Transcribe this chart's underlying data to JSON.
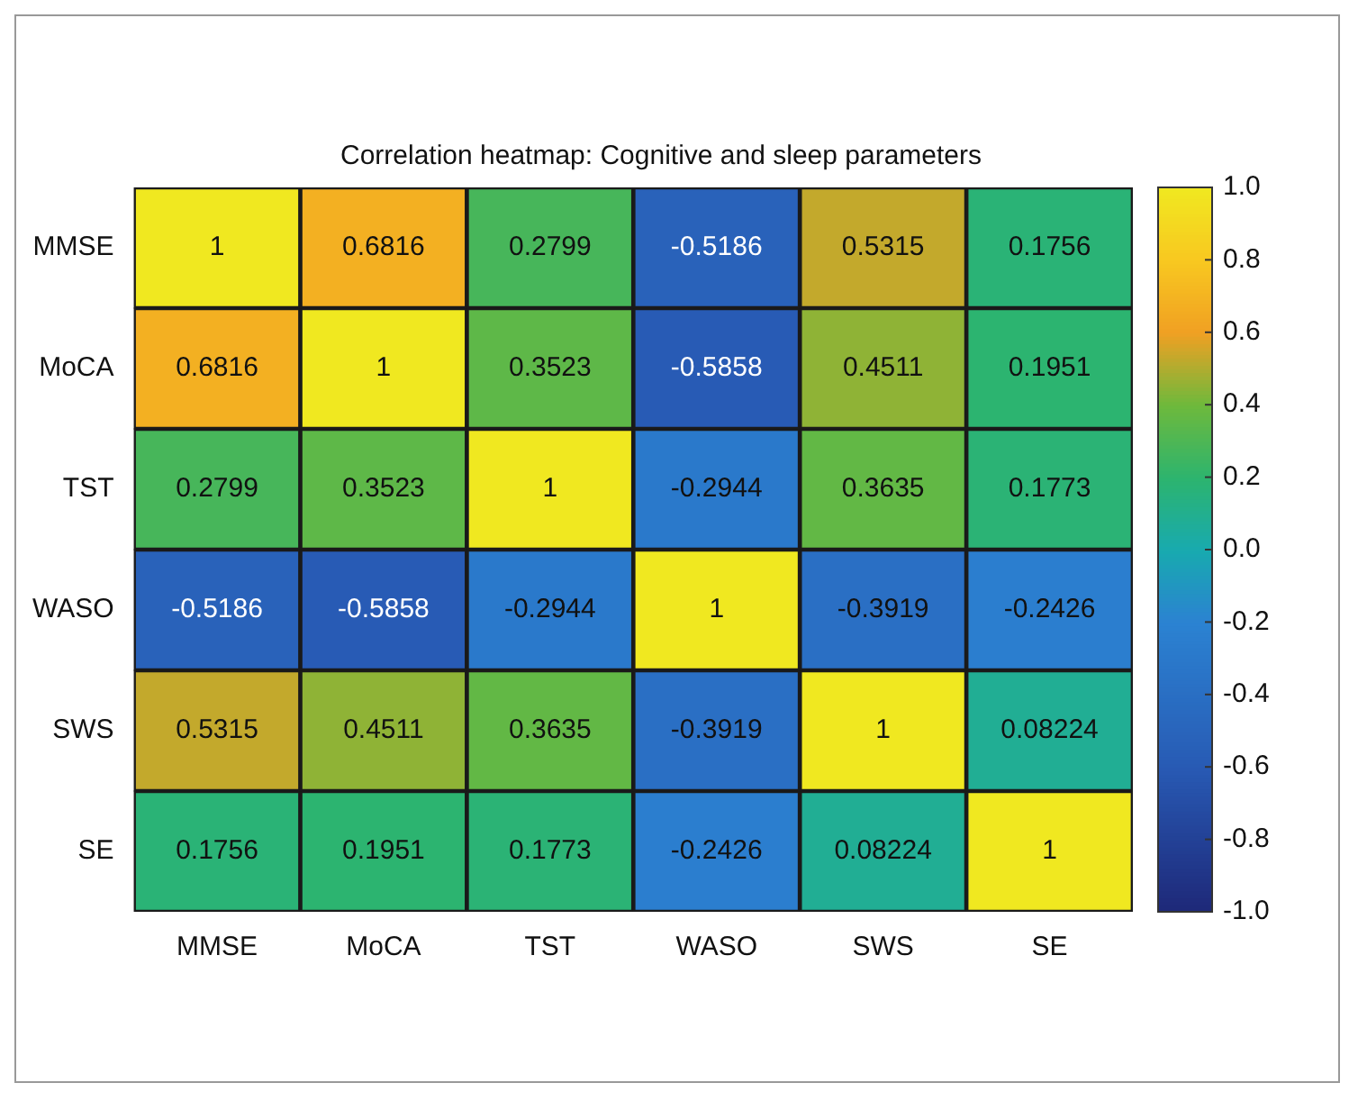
{
  "chart_data": {
    "type": "heatmap",
    "title": "Correlation heatmap: Cognitive and sleep parameters",
    "categories": [
      "MMSE",
      "MoCA",
      "TST",
      "WASO",
      "SWS",
      "SE"
    ],
    "y_categories": [
      "MMSE",
      "MoCA",
      "TST",
      "WASO",
      "SWS",
      "SE"
    ],
    "cells": [
      [
        1,
        0.6816,
        0.2799,
        -0.5186,
        0.5315,
        0.1756
      ],
      [
        0.6816,
        1,
        0.3523,
        -0.5858,
        0.4511,
        0.1951
      ],
      [
        0.2799,
        0.3523,
        1,
        -0.2944,
        0.3635,
        0.1773
      ],
      [
        -0.5186,
        -0.5858,
        -0.2944,
        1,
        -0.3919,
        -0.2426
      ],
      [
        0.5315,
        0.4511,
        0.3635,
        -0.3919,
        1,
        0.08224
      ],
      [
        0.1756,
        0.1951,
        0.1773,
        -0.2426,
        0.08224,
        1
      ]
    ],
    "clim": [
      -1,
      1
    ],
    "cticks": [
      {
        "value": -1,
        "label": "-1.0"
      },
      -0.8,
      -0.6,
      -0.4,
      -0.2,
      {
        "value": 0,
        "label": "0.0"
      },
      0.2,
      0.4,
      0.6,
      0.8,
      {
        "value": 1,
        "label": "1.0"
      }
    ],
    "data_labels": true
  }
}
